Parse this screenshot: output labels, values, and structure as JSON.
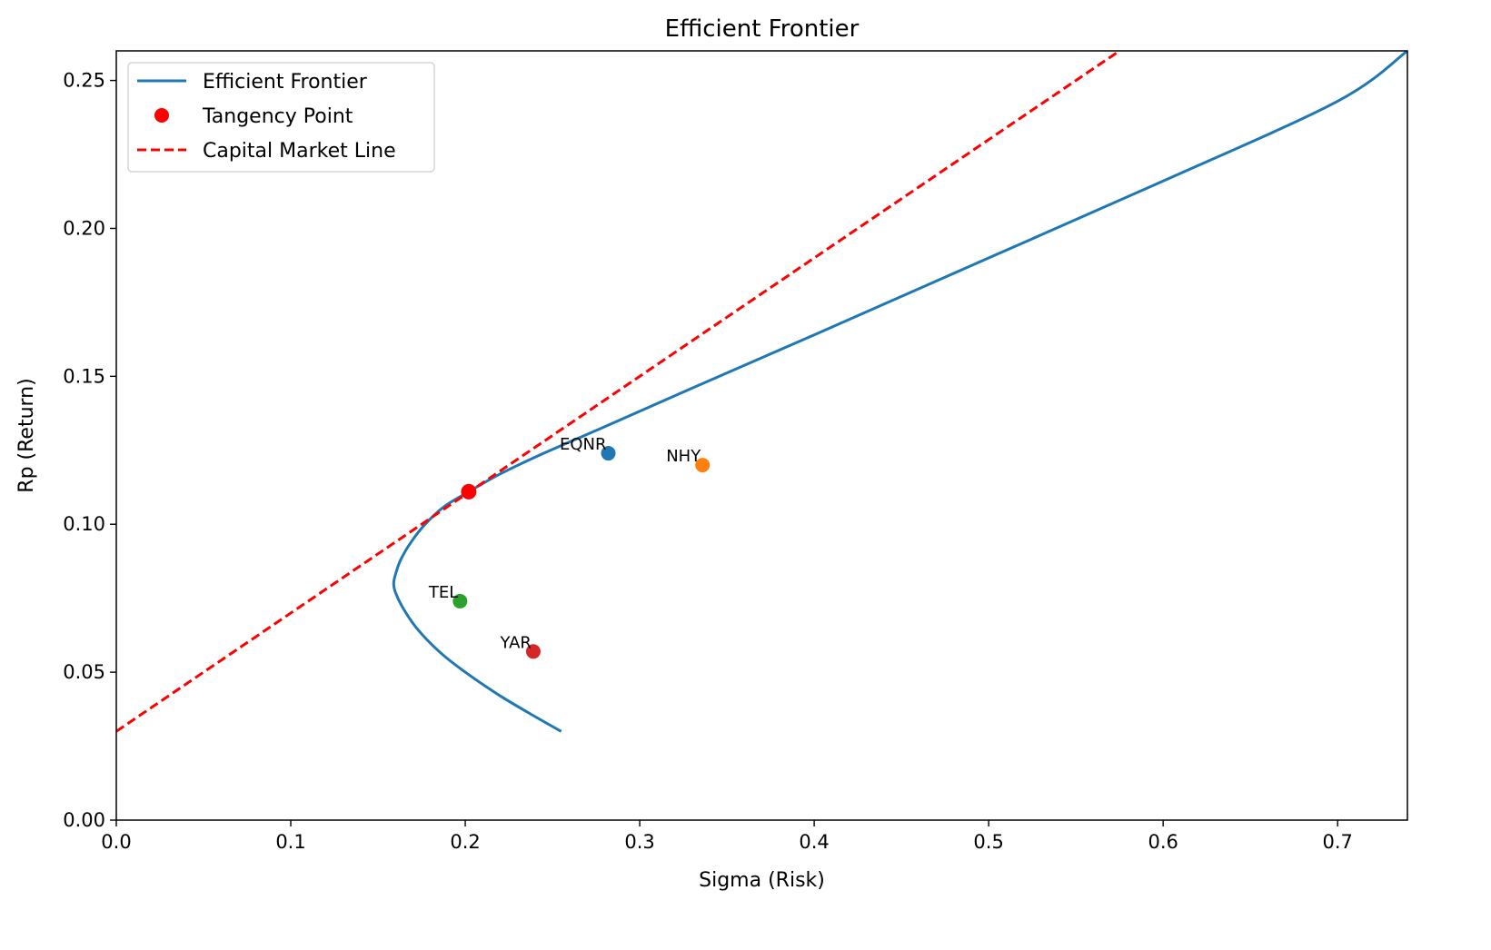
{
  "chart_data": {
    "type": "line",
    "title": "Efficient Frontier",
    "xlabel": "Sigma (Risk)",
    "ylabel": "Rp (Return)",
    "xlim": [
      0,
      0.74
    ],
    "ylim": [
      0,
      0.26
    ],
    "x_ticks": [
      0.0,
      0.1,
      0.2,
      0.3,
      0.4,
      0.5,
      0.6,
      0.7
    ],
    "y_ticks": [
      0.0,
      0.05,
      0.1,
      0.15,
      0.2,
      0.25
    ],
    "x_tick_labels": [
      "0.0",
      "0.1",
      "0.2",
      "0.3",
      "0.4",
      "0.5",
      "0.6",
      "0.7"
    ],
    "y_tick_labels": [
      "0.00",
      "0.05",
      "0.10",
      "0.15",
      "0.20",
      "0.25"
    ],
    "legend_position": "top-left",
    "grid": false,
    "series": [
      {
        "name": "Efficient Frontier",
        "style": "solid",
        "color": "#1f77b4",
        "x": [
          0.255,
          0.24,
          0.22,
          0.2,
          0.185,
          0.172,
          0.164,
          0.16,
          0.159,
          0.16,
          0.163,
          0.169,
          0.177,
          0.188,
          0.202,
          0.22,
          0.245,
          0.28,
          0.33,
          0.4,
          0.5,
          0.6,
          0.7,
          0.74
        ],
        "y": [
          0.03,
          0.035,
          0.042,
          0.05,
          0.057,
          0.065,
          0.072,
          0.077,
          0.08,
          0.083,
          0.088,
          0.094,
          0.1,
          0.106,
          0.111,
          0.117,
          0.124,
          0.133,
          0.146,
          0.164,
          0.19,
          0.216,
          0.243,
          0.26
        ]
      },
      {
        "name": "Capital Market Line",
        "style": "dashed",
        "color": "#ff0000",
        "x": [
          0.0,
          0.575
        ],
        "y": [
          0.03,
          0.26
        ]
      }
    ],
    "tangency_point": {
      "name": "Tangency Point",
      "x": 0.202,
      "y": 0.111,
      "color": "#ff0000"
    },
    "assets": [
      {
        "label": "EQNR",
        "x": 0.282,
        "y": 0.124,
        "color": "#1f77b4"
      },
      {
        "label": "NHY",
        "x": 0.336,
        "y": 0.12,
        "color": "#ff7f0e"
      },
      {
        "label": "TEL",
        "x": 0.197,
        "y": 0.074,
        "color": "#2ca02c"
      },
      {
        "label": "YAR",
        "x": 0.239,
        "y": 0.057,
        "color": "#d62728"
      }
    ],
    "legend": [
      "Efficient Frontier",
      "Tangency Point",
      "Capital Market Line"
    ]
  }
}
